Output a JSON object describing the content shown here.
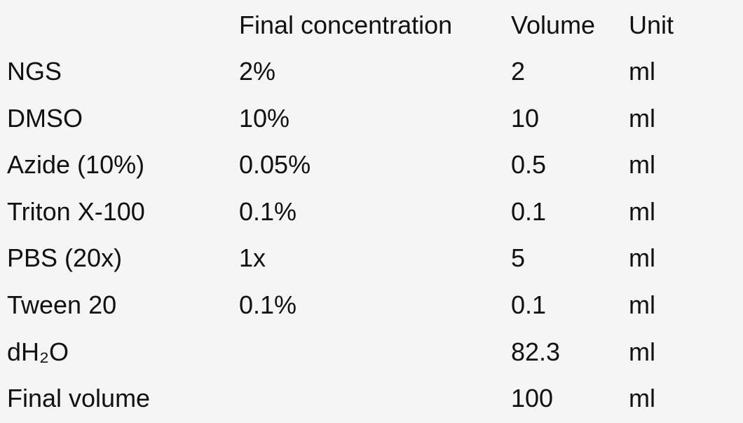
{
  "table": {
    "header": [
      null,
      "Final concentration",
      "Volume",
      "Unit"
    ],
    "rows": [
      [
        "NGS",
        "2%",
        "2",
        "ml"
      ],
      [
        "DMSO",
        "10%",
        "10",
        "ml"
      ],
      [
        "Azide (10%)",
        "0.05%",
        "0.5",
        "ml"
      ],
      [
        "Triton X-100",
        "0.1%",
        "0.1",
        "ml"
      ],
      [
        "PBS (20x)",
        "1x",
        "5",
        "ml"
      ],
      [
        "Tween 20",
        "0.1%",
        "0.1",
        "ml"
      ],
      [
        "dH₂O",
        null,
        "82.3",
        "ml"
      ],
      [
        "Final volume",
        null,
        "100",
        "ml"
      ]
    ]
  }
}
